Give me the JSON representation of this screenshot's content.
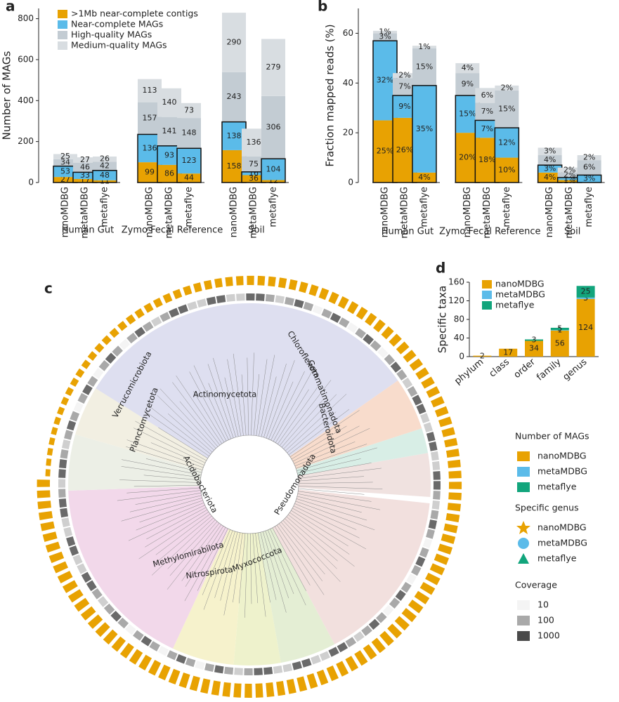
{
  "chart_data": [
    {
      "type": "bar",
      "panel": "a",
      "ylabel": "Number of MAGs",
      "groups": [
        "Human Gut",
        "Zymo Fecal Reference",
        "Soil"
      ],
      "categories": [
        "nanoMDBG",
        "metaMDBG",
        "metaflye",
        "nanoMDBG",
        "metaMDBG",
        "metaflye",
        "nanoMDBG",
        "metaMDBG",
        "metaflye"
      ],
      "ylim": [
        0,
        850
      ],
      "yticks": [
        0,
        200,
        400,
        600,
        800
      ],
      "series": [
        {
          "name": ">1Mb near-complete contigs",
          "color": "#e8a202",
          "values": [
            27,
            17,
            11,
            99,
            86,
            44,
            158,
            36,
            12
          ]
        },
        {
          "name": "Near-complete MAGs",
          "color": "#5bbbe9",
          "values": [
            53,
            33,
            48,
            136,
            93,
            123,
            138,
            16,
            104
          ]
        },
        {
          "name": "High-quality MAGs",
          "color": "#c3ccd3",
          "values": [
            34,
            46,
            42,
            157,
            141,
            148,
            243,
            75,
            306
          ]
        },
        {
          "name": "Medium-quality MAGs",
          "color": "#d8dde1",
          "values": [
            25,
            27,
            26,
            113,
            140,
            73,
            290,
            136,
            279
          ]
        }
      ]
    },
    {
      "type": "bar",
      "panel": "b",
      "ylabel": "Fraction mapped reads (%)",
      "groups": [
        "Human Gut",
        "Zymo Fecal Reference",
        "Soil"
      ],
      "categories": [
        "nanoMDBG",
        "metaMDBG",
        "metaflye",
        "nanoMDBG",
        "metaMDBG",
        "metaflye",
        "nanoMDBG",
        "metaMDBG",
        "metaflye"
      ],
      "ylim": [
        0,
        70
      ],
      "yticks": [
        0,
        20,
        40,
        60
      ],
      "series": [
        {
          "name": ">1Mb near-complete contigs",
          "color": "#e8a202",
          "values": [
            25,
            26,
            4,
            20,
            18,
            10,
            4,
            1,
            null
          ],
          "value_labels": [
            "25%",
            "26%",
            "4%",
            "20%",
            "18%",
            "10%",
            "4%",
            "1%",
            null
          ]
        },
        {
          "name": "Near-complete MAGs",
          "color": "#5bbbe9",
          "values": [
            32,
            9,
            35,
            15,
            7,
            12,
            3,
            1,
            3
          ],
          "value_labels": [
            "32%",
            "9%",
            "35%",
            "15%",
            "7%",
            "12%",
            "3%",
            "1%",
            "3%"
          ]
        },
        {
          "name": "High-quality MAGs",
          "color": "#c3ccd3",
          "values": [
            3,
            7,
            15,
            9,
            7,
            15,
            4,
            2,
            6
          ],
          "value_labels": [
            "3%",
            "7%",
            "15%",
            "9%",
            "7%",
            "15%",
            "4%",
            "2%",
            "6%"
          ]
        },
        {
          "name": "Medium-quality MAGs",
          "color": "#d8dde1",
          "values": [
            1,
            2,
            1,
            4,
            6,
            2,
            3,
            2,
            2
          ],
          "value_labels": [
            "1%",
            "2%",
            "1%",
            "4%",
            "6%",
            "2%",
            "3%",
            "2%",
            "2%"
          ]
        }
      ]
    },
    {
      "type": "tree",
      "panel": "c",
      "clades": [
        "Actinomycetota",
        "Chloroflexota",
        "Gemmatimonadota",
        "Bacteroidota",
        "Pseudomonadota",
        "Myxococcota",
        "Nitrospirota",
        "Methylomirabilota",
        "Acidobacteriota",
        "Planctomycetota",
        "Verrucomicrobiota"
      ],
      "legend_mags": {
        "title": "Number of MAGs",
        "items": [
          {
            "name": "nanoMDBG",
            "color": "#e8a202"
          },
          {
            "name": "metaMDBG",
            "color": "#5bbbe9"
          },
          {
            "name": "metaflye",
            "color": "#12a57c"
          }
        ]
      },
      "legend_genus": {
        "title": "Specific genus",
        "items": [
          {
            "name": "nanoMDBG",
            "color": "#e8a202"
          },
          {
            "name": "metaMDBG",
            "color": "#5bbbe9"
          },
          {
            "name": "metaflye",
            "color": "#12a57c"
          }
        ]
      },
      "legend_coverage": {
        "title": "Coverage",
        "items": [
          {
            "name": "10",
            "color": "#f4f4f4"
          },
          {
            "name": "100",
            "color": "#a9a9a9"
          },
          {
            "name": "1000",
            "color": "#4a4a4a"
          }
        ]
      }
    },
    {
      "type": "bar",
      "panel": "d",
      "ylabel": "Specific taxa",
      "categories": [
        "phylum",
        "class",
        "order",
        "family",
        "genus"
      ],
      "ylim": [
        0,
        160
      ],
      "yticks": [
        0,
        40,
        80,
        120,
        160
      ],
      "series": [
        {
          "name": "nanoMDBG",
          "color": "#e8a202",
          "values": [
            2,
            17,
            34,
            56,
            124
          ]
        },
        {
          "name": "metaMDBG",
          "color": "#5bbbe9",
          "values": [
            null,
            null,
            null,
            1,
            3
          ]
        },
        {
          "name": "metaflye",
          "color": "#12a57c",
          "values": [
            null,
            null,
            3,
            5,
            25
          ]
        }
      ]
    }
  ]
}
